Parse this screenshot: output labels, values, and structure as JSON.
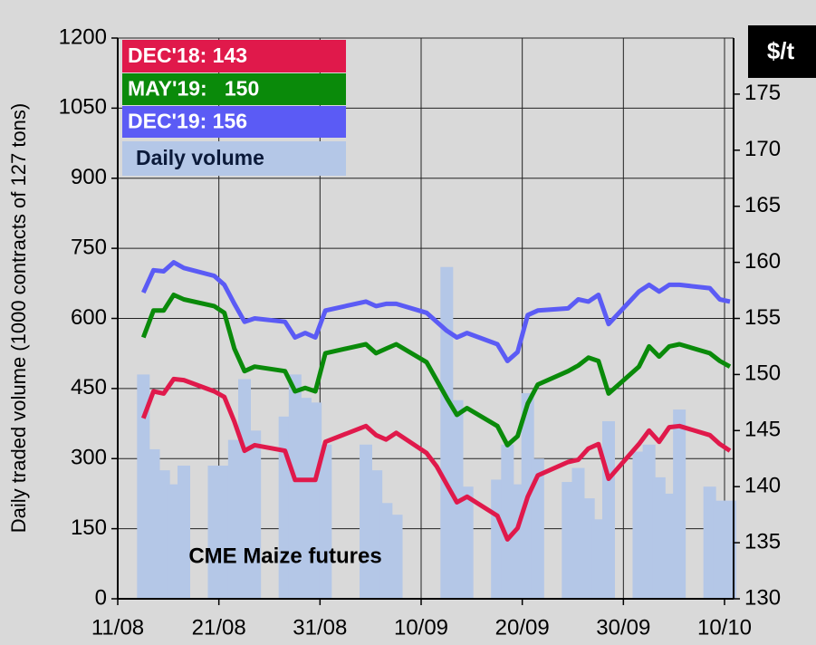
{
  "chart_data": {
    "type": "bar",
    "ylabel": "Daily traded  volume (1000 contracts of 127 tons)",
    "y2label": "$/t",
    "annotation": "CME Maize futures",
    "x": [
      "13/08",
      "14/08",
      "15/08",
      "16/08",
      "17/08",
      "20/08",
      "21/08",
      "22/08",
      "23/08",
      "24/08",
      "27/08",
      "28/08",
      "29/08",
      "30/08",
      "31/08",
      "04/09",
      "05/09",
      "06/09",
      "07/09",
      "10/09",
      "11/09",
      "12/09",
      "13/09",
      "14/09",
      "17/09",
      "18/09",
      "19/09",
      "20/09",
      "21/09",
      "24/09",
      "25/09",
      "26/09",
      "27/09",
      "28/09",
      "01/10",
      "02/10",
      "03/10",
      "04/10",
      "05/10",
      "08/10",
      "09/10",
      "10/10"
    ],
    "xlim": [
      "11/08",
      "10/10"
    ],
    "xticks": [
      "11/08",
      "21/08",
      "31/08",
      "10/09",
      "20/09",
      "30/09",
      "10/10"
    ],
    "ylim": [
      0,
      1200
    ],
    "yticks": [
      0,
      150,
      300,
      450,
      600,
      750,
      900,
      1050,
      1200
    ],
    "y2lim": [
      130,
      180
    ],
    "y2ticks": [
      130,
      135,
      140,
      145,
      150,
      155,
      160,
      165,
      170,
      175
    ],
    "grid": true,
    "series": [
      {
        "name": "DEC'18: 143",
        "color": "#e0194b",
        "type": "line",
        "axis": "y2",
        "values": [
          146.1,
          148.5,
          148.3,
          149.6,
          149.5,
          148.5,
          148,
          145.8,
          143.2,
          143.7,
          143.2,
          140.6,
          140.6,
          140.6,
          144,
          145.4,
          144.6,
          144.2,
          144.8,
          143,
          141.8,
          140.2,
          138.6,
          139.1,
          137.4,
          135.3,
          136.3,
          139.1,
          141,
          142.2,
          142.4,
          143.4,
          143.8,
          140.7,
          143.8,
          145,
          144,
          145.3,
          145.4,
          144.6,
          143.8,
          143.2
        ]
      },
      {
        "name": "MAY'19:   150",
        "color": "#0a8a0a",
        "type": "line",
        "axis": "y2",
        "values": [
          153.3,
          155.7,
          155.7,
          157.1,
          156.7,
          156.1,
          155.5,
          152.3,
          150.3,
          150.7,
          150.3,
          148.5,
          148.8,
          148.5,
          151.9,
          152.7,
          151.9,
          152.3,
          152.7,
          151.1,
          149.5,
          147.9,
          146.4,
          147,
          145.4,
          143.7,
          144.5,
          147.4,
          149.1,
          150.3,
          150.8,
          151.5,
          151.2,
          148.3,
          150.7,
          152.5,
          151.6,
          152.5,
          152.7,
          151.9,
          151.2,
          150.7
        ]
      },
      {
        "name": "DEC'19: 156",
        "color": "#5b5bf5",
        "type": "line",
        "axis": "y2",
        "values": [
          157.3,
          159.3,
          159.2,
          160,
          159.5,
          158.8,
          158,
          156.3,
          154.7,
          155,
          154.7,
          153.3,
          153.7,
          153.3,
          155.7,
          156.5,
          156.1,
          156.3,
          156.3,
          155.5,
          154.7,
          153.9,
          153.3,
          153.7,
          152.7,
          151.2,
          152,
          155.3,
          155.7,
          155.9,
          156.7,
          156.5,
          157.1,
          154.5,
          157.4,
          158,
          157.4,
          158,
          158,
          157.7,
          156.7,
          156.5
        ]
      },
      {
        "name": "Daily volume",
        "color": "#b4c7e7",
        "type": "bar",
        "values": [
          480,
          320,
          275,
          245,
          285,
          285,
          285,
          340,
          470,
          360,
          390,
          480,
          430,
          420,
          330,
          330,
          275,
          205,
          180,
          null,
          null,
          710,
          425,
          240,
          255,
          330,
          245,
          440,
          300,
          250,
          280,
          215,
          170,
          380,
          315,
          330,
          260,
          225,
          405,
          240,
          210,
          210
        ]
      }
    ]
  }
}
